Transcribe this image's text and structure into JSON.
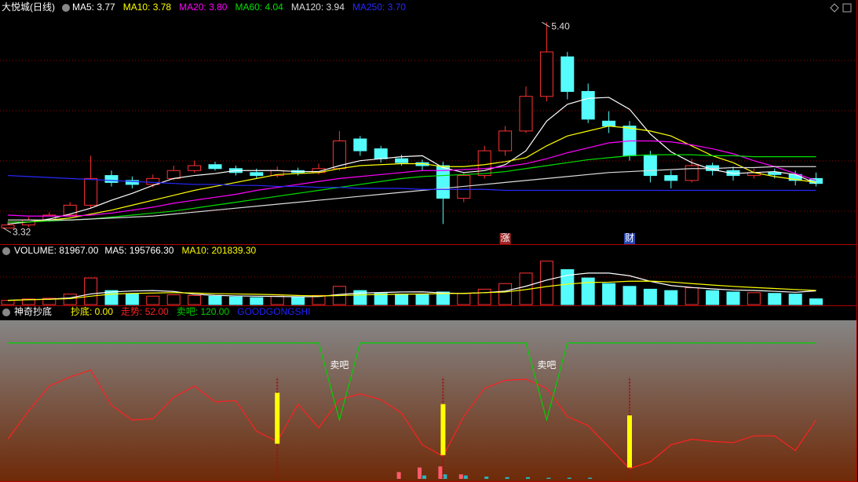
{
  "chart_data": [
    {
      "type": "candlestick",
      "title": "大悦城(日线)",
      "up_color": "#ff3232",
      "down_color": "#54fcfc",
      "open": [
        3.32,
        3.35,
        3.4,
        3.45,
        3.55,
        3.85,
        3.8,
        3.76,
        3.82,
        3.9,
        3.96,
        3.92,
        3.88,
        3.85,
        3.9,
        3.88,
        3.92,
        4.22,
        4.12,
        4.02,
        3.98,
        3.95,
        3.62,
        3.85,
        4.1,
        4.3,
        4.65,
        5.05,
        4.7,
        4.4,
        4.35,
        4.05,
        3.85,
        3.8,
        3.95,
        3.9,
        3.85,
        3.88,
        3.86,
        3.82
      ],
      "high": [
        3.38,
        3.43,
        3.48,
        3.58,
        4.05,
        3.9,
        3.84,
        3.86,
        3.95,
        4.0,
        3.99,
        3.95,
        3.92,
        3.94,
        3.93,
        3.97,
        4.3,
        4.25,
        4.15,
        4.06,
        4.01,
        3.99,
        3.88,
        4.15,
        4.35,
        4.75,
        5.4,
        5.1,
        4.78,
        4.5,
        4.4,
        4.1,
        3.9,
        4.02,
        3.98,
        3.94,
        3.92,
        3.92,
        3.9,
        3.88
      ],
      "low": [
        3.32,
        3.33,
        3.38,
        3.43,
        3.52,
        3.74,
        3.72,
        3.73,
        3.8,
        3.88,
        3.9,
        3.85,
        3.82,
        3.83,
        3.85,
        3.86,
        3.9,
        4.05,
        3.98,
        3.95,
        3.9,
        3.36,
        3.58,
        3.82,
        4.05,
        4.28,
        4.6,
        4.62,
        4.38,
        4.28,
        4.0,
        3.78,
        3.72,
        3.78,
        3.85,
        3.8,
        3.82,
        3.82,
        3.75,
        3.74
      ],
      "close": [
        3.35,
        3.4,
        3.45,
        3.55,
        3.82,
        3.78,
        3.76,
        3.82,
        3.9,
        3.95,
        3.92,
        3.88,
        3.85,
        3.9,
        3.88,
        3.92,
        4.2,
        4.1,
        4.02,
        3.98,
        3.95,
        3.62,
        3.85,
        4.1,
        4.3,
        4.65,
        5.1,
        4.7,
        4.42,
        4.35,
        4.05,
        3.85,
        3.8,
        3.95,
        3.9,
        3.85,
        3.88,
        3.86,
        3.8,
        3.77
      ],
      "ylim": [
        3.18,
        5.45
      ],
      "series": [
        {
          "legend": "MA5: 3.77",
          "color": "#ffffff",
          "values": [
            3.36,
            3.38,
            3.41,
            3.46,
            3.52,
            3.6,
            3.67,
            3.75,
            3.82,
            3.85,
            3.87,
            3.9,
            3.9,
            3.9,
            3.89,
            3.89,
            3.95,
            4.0,
            4.02,
            4.04,
            4.05,
            3.93,
            3.88,
            3.9,
            3.96,
            4.1,
            4.4,
            4.57,
            4.63,
            4.64,
            4.52,
            4.27,
            4.09,
            3.98,
            3.91,
            3.87,
            3.88,
            3.89,
            3.86,
            3.77
          ]
        },
        {
          "legend": "MA10: 3.78",
          "color": "#ffff00",
          "values": [
            3.38,
            3.38,
            3.4,
            3.42,
            3.46,
            3.5,
            3.55,
            3.6,
            3.65,
            3.7,
            3.74,
            3.78,
            3.82,
            3.86,
            3.87,
            3.88,
            3.92,
            3.95,
            3.96,
            3.97,
            3.97,
            3.94,
            3.94,
            3.96,
            3.99,
            4.03,
            4.15,
            4.25,
            4.3,
            4.35,
            4.33,
            4.3,
            4.25,
            4.15,
            4.05,
            3.98,
            3.88,
            3.84,
            3.81,
            3.78
          ]
        },
        {
          "legend": "MA20: 3.80",
          "color": "#ff00ff",
          "values": [
            3.45,
            3.44,
            3.44,
            3.44,
            3.45,
            3.47,
            3.5,
            3.53,
            3.57,
            3.6,
            3.63,
            3.66,
            3.7,
            3.73,
            3.76,
            3.79,
            3.82,
            3.84,
            3.86,
            3.88,
            3.9,
            3.9,
            3.91,
            3.92,
            3.94,
            3.97,
            4.02,
            4.08,
            4.13,
            4.18,
            4.2,
            4.2,
            4.19,
            4.16,
            4.12,
            4.07,
            4.0,
            3.94,
            3.87,
            3.8
          ]
        },
        {
          "legend": "MA60: 4.04",
          "color": "#00e000",
          "values": [
            3.38,
            3.38,
            3.39,
            3.4,
            3.41,
            3.43,
            3.45,
            3.47,
            3.49,
            3.52,
            3.55,
            3.58,
            3.61,
            3.64,
            3.67,
            3.7,
            3.73,
            3.76,
            3.79,
            3.82,
            3.84,
            3.85,
            3.86,
            3.87,
            3.89,
            3.92,
            3.95,
            3.98,
            4.01,
            4.03,
            4.05,
            4.06,
            4.06,
            4.06,
            4.05,
            4.05,
            4.04,
            4.04,
            4.04,
            4.04
          ]
        },
        {
          "legend": "MA120: 3.94",
          "color": "#dcdcdc",
          "values": [
            3.4,
            3.4,
            3.4,
            3.4,
            3.41,
            3.42,
            3.43,
            3.44,
            3.46,
            3.48,
            3.5,
            3.52,
            3.54,
            3.56,
            3.58,
            3.6,
            3.62,
            3.64,
            3.66,
            3.68,
            3.7,
            3.72,
            3.74,
            3.76,
            3.78,
            3.8,
            3.82,
            3.84,
            3.86,
            3.88,
            3.89,
            3.9,
            3.91,
            3.92,
            3.92,
            3.93,
            3.93,
            3.94,
            3.94,
            3.94
          ]
        },
        {
          "legend": "MA250: 3.70",
          "color": "#2828ff",
          "values": [
            3.85,
            3.84,
            3.83,
            3.82,
            3.81,
            3.8,
            3.79,
            3.78,
            3.77,
            3.76,
            3.76,
            3.75,
            3.75,
            3.74,
            3.74,
            3.73,
            3.73,
            3.72,
            3.72,
            3.72,
            3.71,
            3.71,
            3.71,
            3.71,
            3.7,
            3.7,
            3.7,
            3.7,
            3.7,
            3.7,
            3.7,
            3.7,
            3.7,
            3.7,
            3.7,
            3.7,
            3.7,
            3.7,
            3.7,
            3.7
          ]
        }
      ],
      "extreme_labels": [
        {
          "index": 26,
          "value": 5.4,
          "label": "5.40"
        },
        {
          "index": 0,
          "value": 3.32,
          "label": "3.32"
        }
      ],
      "markers": [
        {
          "index": 24,
          "text": "涨",
          "color": "#a02828"
        },
        {
          "index": 30,
          "text": "财",
          "color": "#2848b0"
        }
      ]
    },
    {
      "type": "volume",
      "title": "VOLUME: 81967.00",
      "values": [
        60000,
        80000,
        90000,
        150000,
        380000,
        200000,
        150000,
        120000,
        140000,
        130000,
        120000,
        110000,
        100000,
        120000,
        110000,
        130000,
        260000,
        200000,
        160000,
        150000,
        140000,
        180000,
        160000,
        220000,
        300000,
        450000,
        620000,
        500000,
        380000,
        300000,
        260000,
        220000,
        200000,
        240000,
        200000,
        180000,
        170000,
        160000,
        150000,
        81967
      ],
      "ylim": [
        0,
        650000
      ],
      "series": [
        {
          "legend": "MA5: 195766.30",
          "color": "#ffffff",
          "values": [
            60000,
            70000,
            77000,
            95000,
            152000,
            180000,
            194000,
            200000,
            188000,
            148000,
            132000,
            124000,
            120000,
            116000,
            112000,
            114000,
            144000,
            164000,
            172000,
            180000,
            182000,
            166000,
            158000,
            170000,
            192000,
            262000,
            350000,
            418000,
            450000,
            450000,
            412000,
            332000,
            272000,
            244000,
            224000,
            208000,
            202000,
            190000,
            176000,
            195766.3
          ]
        },
        {
          "legend": "MA10: 201839.30",
          "color": "#ffff00",
          "values": [
            60000,
            70000,
            75000,
            85000,
            120000,
            150000,
            160000,
            165000,
            170000,
            165000,
            156000,
            152000,
            147000,
            140000,
            130000,
            123000,
            129000,
            138000,
            144000,
            147000,
            151000,
            156000,
            161000,
            170000,
            180000,
            214000,
            258000,
            292000,
            315000,
            320000,
            333000,
            335000,
            323000,
            300000,
            279000,
            260000,
            244000,
            230000,
            215000,
            201839.3
          ]
        }
      ]
    },
    {
      "type": "indicator",
      "title": "神奇抄底",
      "ylim": [
        0,
        140
      ],
      "credit": "GOODGONGSHI",
      "credit_color": "#2020ff",
      "signals": {
        "legend": "抄底: 0.00",
        "color": "#ffff00",
        "stick_color": "#a01010",
        "items": [
          {
            "index": 13,
            "bar": [
              31,
              76
            ],
            "stick": [
              1,
              90
            ]
          },
          {
            "index": 21,
            "bar": [
              21,
              66
            ],
            "stick": [
              1,
              90
            ]
          },
          {
            "index": 30,
            "bar": [
              10,
              56
            ],
            "stick": [
              1,
              90
            ]
          }
        ]
      },
      "series": [
        {
          "legend": "走势: 52.00",
          "color": "#ff2020",
          "values": [
            35,
            60,
            82,
            90,
            96,
            65,
            52,
            53,
            72,
            82,
            68,
            69,
            42,
            33,
            66,
            45,
            70,
            75,
            70,
            58,
            30,
            20,
            55,
            80,
            87,
            88,
            80,
            55,
            47,
            28,
            9,
            15,
            30,
            35,
            33,
            32,
            38,
            38,
            25,
            52
          ]
        },
        {
          "legend": "卖吧: 120.00",
          "color": "#00d000",
          "values": [
            120,
            120,
            120,
            120,
            120,
            120,
            120,
            120,
            120,
            120,
            120,
            120,
            120,
            120,
            120,
            120,
            52,
            120,
            120,
            120,
            120,
            120,
            120,
            120,
            120,
            120,
            52,
            120,
            120,
            120,
            120,
            120,
            120,
            120,
            120,
            120,
            120,
            120,
            120,
            120
          ]
        }
      ],
      "annotations": [
        {
          "index": 16,
          "text": "卖吧"
        },
        {
          "index": 26,
          "text": "卖吧"
        }
      ],
      "histograms": [
        {
          "color": "#ff5a6a",
          "values": [
            null,
            null,
            null,
            null,
            null,
            null,
            null,
            null,
            null,
            null,
            null,
            null,
            null,
            null,
            null,
            null,
            null,
            null,
            null,
            6,
            10,
            11,
            4,
            null,
            null,
            null,
            null,
            null,
            null,
            null,
            null,
            null,
            null,
            null,
            null,
            null,
            null,
            null,
            null,
            null
          ]
        },
        {
          "color": "#2ab4c0",
          "values": [
            null,
            null,
            null,
            null,
            null,
            null,
            null,
            null,
            null,
            null,
            null,
            null,
            null,
            null,
            null,
            null,
            null,
            null,
            null,
            null,
            3,
            4,
            3,
            2,
            1.5,
            1.5,
            1,
            1,
            1,
            null,
            null,
            null,
            null,
            null,
            null,
            null,
            null,
            null,
            null,
            null
          ]
        }
      ]
    }
  ]
}
